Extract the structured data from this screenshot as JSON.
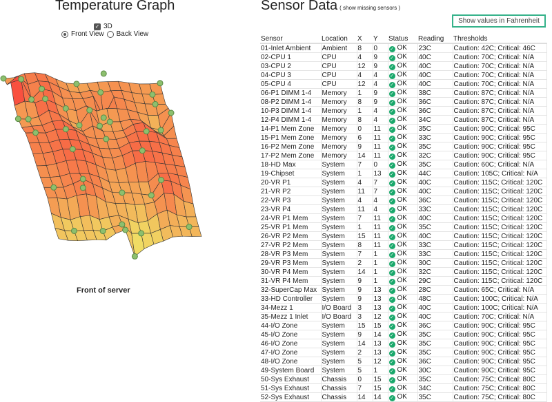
{
  "graph": {
    "title": "Temperature Graph",
    "option_3d": "3D",
    "checked_3d": true,
    "front_view": "Front View",
    "back_view": "Back View",
    "selected_view": "front",
    "caption": "Front of server"
  },
  "sensors": {
    "title": "Sensor Data",
    "show_missing": "( show missing sensors )",
    "fahrenheit_button": "Show values in Fahrenheit",
    "columns": [
      "Sensor",
      "Location",
      "X",
      "Y",
      "Status",
      "Reading",
      "Thresholds"
    ],
    "status_color": "#1aa86b",
    "rows": [
      [
        "01-Inlet Ambient",
        "Ambient",
        "8",
        "0",
        "OK",
        "23C",
        "Caution: 42C; Critical: 46C"
      ],
      [
        "02-CPU 1",
        "CPU",
        "4",
        "9",
        "OK",
        "40C",
        "Caution: 70C; Critical: N/A"
      ],
      [
        "03-CPU 2",
        "CPU",
        "12",
        "9",
        "OK",
        "40C",
        "Caution: 70C; Critical: N/A"
      ],
      [
        "04-CPU 3",
        "CPU",
        "4",
        "4",
        "OK",
        "40C",
        "Caution: 70C; Critical: N/A"
      ],
      [
        "05-CPU 4",
        "CPU",
        "12",
        "4",
        "OK",
        "40C",
        "Caution: 70C; Critical: N/A"
      ],
      [
        "06-P1 DIMM 1-4",
        "Memory",
        "1",
        "9",
        "OK",
        "38C",
        "Caution: 87C; Critical: N/A"
      ],
      [
        "08-P2 DIMM 1-4",
        "Memory",
        "8",
        "9",
        "OK",
        "36C",
        "Caution: 87C; Critical: N/A"
      ],
      [
        "10-P3 DIMM 1-4",
        "Memory",
        "1",
        "4",
        "OK",
        "36C",
        "Caution: 87C; Critical: N/A"
      ],
      [
        "12-P4 DIMM 1-4",
        "Memory",
        "8",
        "4",
        "OK",
        "34C",
        "Caution: 87C; Critical: N/A"
      ],
      [
        "14-P1 Mem Zone",
        "Memory",
        "0",
        "11",
        "OK",
        "35C",
        "Caution: 90C; Critical: 95C"
      ],
      [
        "15-P1 Mem Zone",
        "Memory",
        "6",
        "11",
        "OK",
        "33C",
        "Caution: 90C; Critical: 95C"
      ],
      [
        "16-P2 Mem Zone",
        "Memory",
        "9",
        "11",
        "OK",
        "35C",
        "Caution: 90C; Critical: 95C"
      ],
      [
        "17-P2 Mem Zone",
        "Memory",
        "14",
        "11",
        "OK",
        "32C",
        "Caution: 90C; Critical: 95C"
      ],
      [
        "18-HD Max",
        "System",
        "7",
        "0",
        "OK",
        "35C",
        "Caution: 60C; Critical: N/A"
      ],
      [
        "19-Chipset",
        "System",
        "1",
        "13",
        "OK",
        "44C",
        "Caution: 105C; Critical: N/A"
      ],
      [
        "20-VR P1",
        "System",
        "4",
        "7",
        "OK",
        "40C",
        "Caution: 115C; Critical: 120C"
      ],
      [
        "21-VR P2",
        "System",
        "11",
        "7",
        "OK",
        "40C",
        "Caution: 115C; Critical: 120C"
      ],
      [
        "22-VR P3",
        "System",
        "4",
        "4",
        "OK",
        "36C",
        "Caution: 115C; Critical: 120C"
      ],
      [
        "23-VR P4",
        "System",
        "11",
        "4",
        "OK",
        "33C",
        "Caution: 115C; Critical: 120C"
      ],
      [
        "24-VR P1 Mem",
        "System",
        "7",
        "11",
        "OK",
        "40C",
        "Caution: 115C; Critical: 120C"
      ],
      [
        "25-VR P1 Mem",
        "System",
        "1",
        "11",
        "OK",
        "35C",
        "Caution: 115C; Critical: 120C"
      ],
      [
        "26-VR P2 Mem",
        "System",
        "15",
        "11",
        "OK",
        "40C",
        "Caution: 115C; Critical: 120C"
      ],
      [
        "27-VR P2 Mem",
        "System",
        "8",
        "11",
        "OK",
        "33C",
        "Caution: 115C; Critical: 120C"
      ],
      [
        "28-VR P3 Mem",
        "System",
        "7",
        "1",
        "OK",
        "33C",
        "Caution: 115C; Critical: 120C"
      ],
      [
        "29-VR P3 Mem",
        "System",
        "2",
        "1",
        "OK",
        "30C",
        "Caution: 115C; Critical: 120C"
      ],
      [
        "30-VR P4 Mem",
        "System",
        "14",
        "1",
        "OK",
        "32C",
        "Caution: 115C; Critical: 120C"
      ],
      [
        "31-VR P4 Mem",
        "System",
        "9",
        "1",
        "OK",
        "29C",
        "Caution: 115C; Critical: 120C"
      ],
      [
        "32-SuperCap Max",
        "System",
        "9",
        "13",
        "OK",
        "28C",
        "Caution: 65C; Critical: N/A"
      ],
      [
        "33-HD Controller",
        "System",
        "9",
        "13",
        "OK",
        "48C",
        "Caution: 100C; Critical: N/A"
      ],
      [
        "34-Mezz 1",
        "I/O Board",
        "3",
        "13",
        "OK",
        "40C",
        "Caution: 100C; Critical: N/A"
      ],
      [
        "35-Mezz 1 Inlet",
        "I/O Board",
        "3",
        "12",
        "OK",
        "40C",
        "Caution: 70C; Critical: N/A"
      ],
      [
        "44-I/O Zone",
        "System",
        "15",
        "15",
        "OK",
        "36C",
        "Caution: 90C; Critical: 95C"
      ],
      [
        "45-I/O Zone",
        "System",
        "9",
        "14",
        "OK",
        "35C",
        "Caution: 90C; Critical: 95C"
      ],
      [
        "46-I/O Zone",
        "System",
        "14",
        "13",
        "OK",
        "35C",
        "Caution: 90C; Critical: 95C"
      ],
      [
        "47-I/O Zone",
        "System",
        "2",
        "13",
        "OK",
        "35C",
        "Caution: 90C; Critical: 95C"
      ],
      [
        "48-I/O Zone",
        "System",
        "5",
        "12",
        "OK",
        "36C",
        "Caution: 90C; Critical: 95C"
      ],
      [
        "49-System Board",
        "System",
        "5",
        "1",
        "OK",
        "30C",
        "Caution: 90C; Critical: 95C"
      ],
      [
        "50-Sys Exhaust",
        "Chassis",
        "0",
        "15",
        "OK",
        "35C",
        "Caution: 75C; Critical: 80C"
      ],
      [
        "51-Sys Exhaust",
        "Chassis",
        "7",
        "15",
        "OK",
        "34C",
        "Caution: 75C; Critical: 80C"
      ],
      [
        "52-Sys Exhaust",
        "Chassis",
        "14",
        "14",
        "OK",
        "35C",
        "Caution: 75C; Critical: 80C"
      ]
    ]
  }
}
